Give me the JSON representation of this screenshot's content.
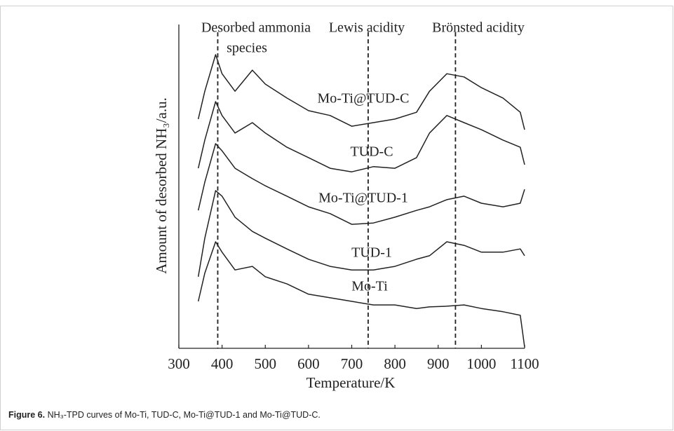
{
  "chart_data": {
    "type": "line",
    "xlabel": "Temperature/K",
    "ylabel": "Amount of desorbed NH₃/a.u.",
    "caption_label": "Figure 6.",
    "caption_text": "NH₃-TPD curves of Mo-Ti, TUD-C, Mo-Ti@TUD-1 and Mo-Ti@TUD-C.",
    "annotations": [
      {
        "text": "Desorbed ammonia",
        "x": 390
      },
      {
        "text": "species",
        "x": 390
      },
      {
        "text": "Lewis acidity",
        "x": 738
      },
      {
        "text": "Brönsted acidity",
        "x": 940
      }
    ],
    "vlines": [
      390,
      738,
      940
    ],
    "xlim": [
      300,
      1100
    ],
    "xticks": [
      300,
      400,
      500,
      600,
      700,
      800,
      900,
      1000,
      1100
    ],
    "ylim": [
      0,
      100
    ],
    "x": [
      345,
      360,
      385,
      400,
      430,
      470,
      500,
      550,
      600,
      650,
      700,
      750,
      800,
      850,
      880,
      920,
      960,
      1000,
      1050,
      1090,
      1100
    ],
    "series": [
      {
        "name": "Mo-Ti@TUD-C",
        "color": "#222222",
        "values": [
          70.8,
          79.4,
          90.7,
          84.8,
          79.4,
          85.9,
          81.6,
          77.3,
          73.4,
          71.9,
          68.6,
          69.7,
          70.8,
          72.9,
          79.4,
          84.8,
          83.8,
          80.5,
          77.3,
          72.9,
          67.5
        ]
      },
      {
        "name": "TUD-C",
        "color": "#222222",
        "values": [
          55.6,
          64.3,
          76.2,
          71.9,
          66.5,
          69.7,
          66.5,
          62.1,
          58.9,
          55.6,
          54.5,
          56.1,
          55.6,
          58.9,
          66.5,
          71.9,
          69.7,
          67.5,
          64.3,
          62.1,
          56.7
        ]
      },
      {
        "name": "Mo-Ti@TUD-1",
        "color": "#222222",
        "values": [
          42.6,
          51.3,
          63.2,
          61.0,
          55.6,
          52.4,
          50.2,
          47.0,
          43.7,
          41.6,
          38.3,
          38.7,
          40.5,
          42.6,
          43.7,
          45.9,
          47.0,
          44.8,
          43.7,
          44.8,
          49.1
        ]
      },
      {
        "name": "TUD-1",
        "color": "#222222",
        "values": [
          22.1,
          34.0,
          48.7,
          47.0,
          40.5,
          36.1,
          34.0,
          30.7,
          27.5,
          25.3,
          24.2,
          24.2,
          25.3,
          27.5,
          28.6,
          32.9,
          31.8,
          29.7,
          29.7,
          30.7,
          28.6
        ]
      },
      {
        "name": "Mo-Ti",
        "color": "#222222",
        "values": [
          14.5,
          23.2,
          32.9,
          29.7,
          24.2,
          25.3,
          22.1,
          19.9,
          16.7,
          15.6,
          14.5,
          13.4,
          13.4,
          12.3,
          12.8,
          13.0,
          13.4,
          12.3,
          11.3,
          10.2,
          0.4
        ]
      }
    ]
  }
}
